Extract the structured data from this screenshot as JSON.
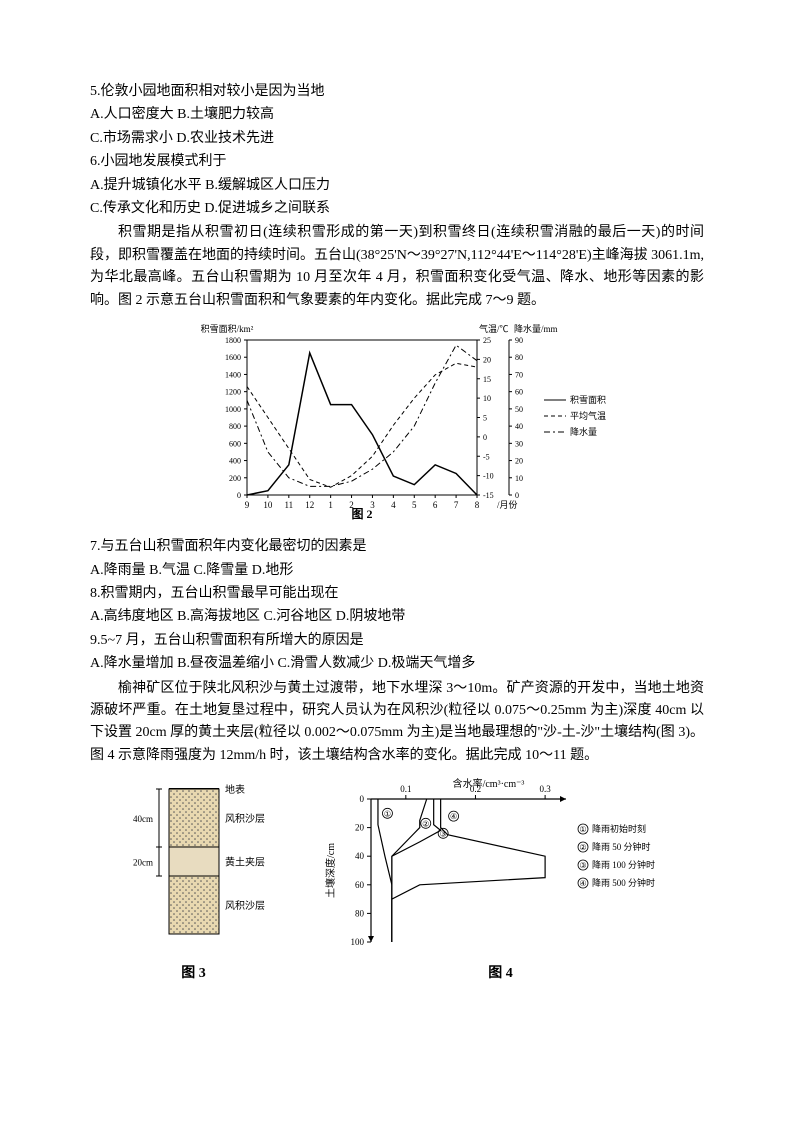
{
  "q5": {
    "text": "5.伦敦小园地面积相对较小是因为当地",
    "optA": "A.人口密度大 B.土壤肥力较高",
    "optC": "C.市场需求小 D.农业技术先进"
  },
  "q6": {
    "text": "6.小园地发展模式利于",
    "optA": "A.提升城镇化水平 B.缓解城区人口压力",
    "optC": "C.传承文化和历史 D.促进城乡之间联系"
  },
  "passage1": "积雪期是指从积雪初日(连续积雪形成的第一天)到积雪终日(连续积雪消融的最后一天)的时间段，即积雪覆盖在地面的持续时间。五台山(38°25'N～39°27'N,112°44'E～114°28'E)主峰海拔 3061.1m,为华北最高峰。五台山积雪期为 10 月至次年 4 月，积雪面积变化受气温、降水、地形等因素的影响。图 2 示意五台山积雪面积和气象要素的年内变化。据此完成 7～9 题。",
  "chart2": {
    "type": "line",
    "title": "图 2",
    "left_axis": {
      "label": "积雪面积/km²",
      "min": 0,
      "max": 1800,
      "ticks": [
        0,
        200,
        400,
        600,
        800,
        1000,
        1200,
        1400,
        1600,
        1800
      ]
    },
    "right_axis1": {
      "label": "气温/℃",
      "min": -15,
      "max": 25,
      "ticks": [
        -15,
        -10,
        -5,
        0,
        5,
        10,
        15,
        20,
        25
      ]
    },
    "right_axis2": {
      "label": "降水量/mm",
      "min": 0,
      "max": 90,
      "ticks": [
        0,
        10,
        20,
        30,
        40,
        50,
        60,
        70,
        80,
        90
      ]
    },
    "x_labels": [
      "9",
      "10",
      "11",
      "12",
      "1",
      "2",
      "3",
      "4",
      "5",
      "6",
      "7",
      "8"
    ],
    "x_title": "月份",
    "series": {
      "snow": {
        "label": "积雪面积",
        "color": "#000000",
        "style": "solid",
        "width": 1.5,
        "values": [
          0,
          50,
          350,
          1650,
          1050,
          1050,
          700,
          220,
          120,
          350,
          250,
          0
        ]
      },
      "temp": {
        "label": "平均气温",
        "color": "#000000",
        "style": "dashed",
        "width": 1,
        "values": [
          13,
          5,
          -3,
          -11,
          -13,
          -10,
          -5,
          3,
          10,
          16,
          19,
          18
        ]
      },
      "precip": {
        "label": "降水量",
        "color": "#000000",
        "style": "dashdot",
        "width": 1,
        "values": [
          55,
          25,
          10,
          5,
          5,
          8,
          15,
          25,
          40,
          65,
          87,
          78
        ]
      }
    },
    "background": "#ffffff",
    "grid_color": "#999999"
  },
  "q7": {
    "text": "7.与五台山积雪面积年内变化最密切的因素是",
    "opts": "A.降雨量 B.气温 C.降雪量 D.地形"
  },
  "q8": {
    "text": "8.积雪期内，五台山积雪最早可能出现在",
    "opts": "A.高纬度地区 B.高海拔地区 C.河谷地区 D.阴坡地带"
  },
  "q9": {
    "text": "9.5~7 月，五台山积雪面积有所增大的原因是",
    "opts": "A.降水量增加 B.昼夜温差缩小 C.滑雪人数减少 D.极端天气增多"
  },
  "passage2": "榆神矿区位于陕北风积沙与黄土过渡带，地下水埋深 3～10m。矿产资源的开发中，当地土地资源破坏严重。在土地复垦过程中，研究人员认为在风积沙(粒径以 0.075～0.25mm 为主)深度 40cm 以下设置 20cm 厚的黄土夹层(粒径以 0.002～0.075mm 为主)是当地最理想的\"沙-土-沙\"土壤结构(图 3)。图 4 示意降雨强度为 12mm/h 时，该土壤结构含水率的变化。据此完成 10～11 题。",
  "fig3": {
    "title": "图 3",
    "layers": [
      {
        "label": "地表",
        "thickness": 0
      },
      {
        "label": "风积沙层",
        "thickness": 40,
        "dim": "40cm",
        "pattern": "dots",
        "color": "#d4b896"
      },
      {
        "label": "黄土夹层",
        "thickness": 20,
        "dim": "20cm",
        "pattern": "solid",
        "color": "#e8dcc0"
      },
      {
        "label": "风积沙层",
        "thickness": 40,
        "pattern": "dots",
        "color": "#d4b896"
      }
    ]
  },
  "fig4": {
    "title": "图 4",
    "x_label": "含水率/cm³·cm⁻³",
    "x_ticks": [
      "0.1",
      "0.2",
      "0.3"
    ],
    "y_label": "土壤深度/cm",
    "y_ticks": [
      "0",
      "20",
      "40",
      "60",
      "80",
      "100"
    ],
    "legend": [
      {
        "id": "①",
        "label": "降雨初始时刻"
      },
      {
        "id": "②",
        "label": "降雨 50 分钟时"
      },
      {
        "id": "③",
        "label": "降雨 100 分钟时"
      },
      {
        "id": "④",
        "label": "降雨 500 分钟时"
      }
    ],
    "line_color": "#000000",
    "curves": {
      "c1": [
        [
          0.06,
          0
        ],
        [
          0.06,
          18
        ],
        [
          0.07,
          40
        ],
        [
          0.08,
          60
        ],
        [
          0.08,
          100
        ]
      ],
      "c2": [
        [
          0.13,
          0
        ],
        [
          0.12,
          15
        ],
        [
          0.12,
          20
        ],
        [
          0.11,
          25
        ],
        [
          0.08,
          40
        ],
        [
          0.08,
          60
        ],
        [
          0.08,
          100
        ]
      ],
      "c3": [
        [
          0.14,
          0
        ],
        [
          0.14,
          18
        ],
        [
          0.15,
          22
        ],
        [
          0.12,
          30
        ],
        [
          0.08,
          40
        ],
        [
          0.08,
          60
        ],
        [
          0.08,
          100
        ]
      ],
      "c4": [
        [
          0.15,
          0
        ],
        [
          0.15,
          20
        ],
        [
          0.16,
          25
        ],
        [
          0.3,
          40
        ],
        [
          0.3,
          55
        ],
        [
          0.12,
          60
        ],
        [
          0.08,
          70
        ],
        [
          0.08,
          100
        ]
      ]
    }
  }
}
